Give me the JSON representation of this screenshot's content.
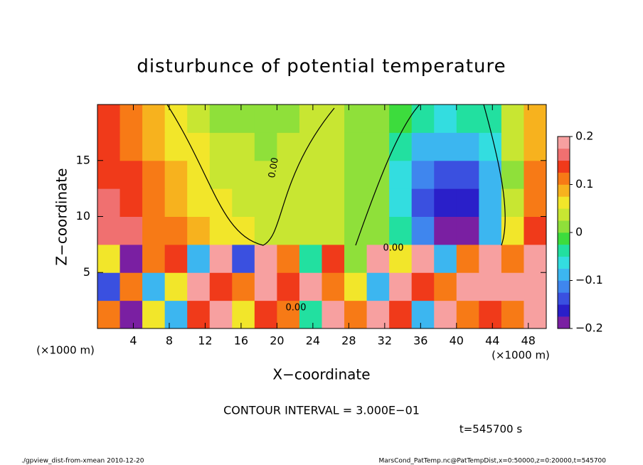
{
  "chart_data": {
    "type": "heatmap",
    "title": "disturbunce of potential temperature",
    "xlabel": "X−coordinate",
    "ylabel": "Z−coordinate",
    "xunit": "(×1000 m)",
    "yunit": "(×1000 m)",
    "xlim": [
      0,
      50
    ],
    "ylim": [
      0,
      20
    ],
    "xticks": [
      4,
      8,
      12,
      16,
      20,
      24,
      28,
      32,
      36,
      40,
      44,
      48
    ],
    "yticks": [
      5,
      10,
      15
    ],
    "clim": [
      -0.2,
      0.2
    ],
    "cticks": [
      {
        "value": -0.2,
        "label": "−0.2"
      },
      {
        "value": -0.1,
        "label": "−0.1"
      },
      0,
      0.1,
      0.2
    ],
    "colors": [
      "#7a1fa2",
      "#2a1fc9",
      "#3a50e0",
      "#3f86ee",
      "#3cb6f0",
      "#33dde0",
      "#22e0a0",
      "#3ddc3d",
      "#8fe03a",
      "#c8e632",
      "#f2e62a",
      "#f7b21e",
      "#f77a16",
      "#f03a1a",
      "#f07070",
      "#f7a0a0"
    ],
    "z": [
      [
        0.1,
        -0.2,
        0.05,
        -0.1,
        0.15,
        0.2,
        0.05,
        0.15,
        0.1,
        -0.05,
        0.2,
        0.1,
        0.2,
        0.15,
        -0.1,
        0.2,
        0.1,
        0.15,
        0.1,
        0.2
      ],
      [
        -0.15,
        0.1,
        -0.1,
        0.05,
        0.2,
        0.15,
        0.1,
        0.2,
        0.15,
        0.2,
        0.1,
        0.05,
        -0.1,
        0.2,
        0.15,
        0.1,
        0.2,
        0.2,
        0.2,
        0.2
      ],
      [
        0.05,
        -0.2,
        0.1,
        0.15,
        -0.1,
        0.2,
        -0.15,
        0.2,
        0.1,
        -0.05,
        0.15,
        0,
        0.2,
        0.05,
        0.2,
        -0.1,
        0.1,
        0.2,
        0.1,
        0.2
      ],
      [
        0.17,
        0.16,
        0.12,
        0.1,
        0.08,
        0.07,
        0.05,
        0.04,
        0.03,
        0.03,
        0.03,
        0.02,
        0,
        -0.05,
        -0.12,
        -0.2,
        -0.2,
        -0.1,
        0.05,
        0.15
      ],
      [
        0.16,
        0.14,
        0.11,
        0.09,
        0.07,
        0.05,
        0.04,
        0.03,
        0.03,
        0.03,
        0.03,
        0.02,
        0,
        -0.07,
        -0.15,
        -0.17,
        -0.16,
        -0.1,
        0.03,
        0.12
      ],
      [
        0.15,
        0.13,
        0.1,
        0.08,
        0.06,
        0.04,
        0.03,
        0.03,
        0.03,
        0.03,
        0.03,
        0.02,
        0.01,
        -0.06,
        -0.12,
        -0.14,
        -0.13,
        -0.08,
        0.02,
        0.1
      ],
      [
        0.14,
        0.12,
        0.09,
        0.07,
        0.05,
        0.04,
        0.03,
        0.02,
        0.03,
        0.03,
        0.03,
        0.02,
        0.01,
        -0.04,
        -0.08,
        -0.1,
        -0.09,
        -0.06,
        0.03,
        0.09
      ],
      [
        0.13,
        0.11,
        0.08,
        0.06,
        0.04,
        0.02,
        0.01,
        0.01,
        0.02,
        0.03,
        0.03,
        0.02,
        0.01,
        -0.02,
        -0.05,
        -0.06,
        -0.05,
        -0.03,
        0.04,
        0.08
      ]
    ],
    "contour_labels": [
      "0.00",
      "0.00",
      "0.00"
    ],
    "note": "CONTOUR INTERVAL = 3.000E−01",
    "time": "t=545700 s",
    "footer_left": "./gpview_dist-from-xmean  2010-12-20",
    "footer_right": "MarsCond_PatTemp.nc@PatTempDist,x=0:50000,z=0:20000,t=545700"
  }
}
